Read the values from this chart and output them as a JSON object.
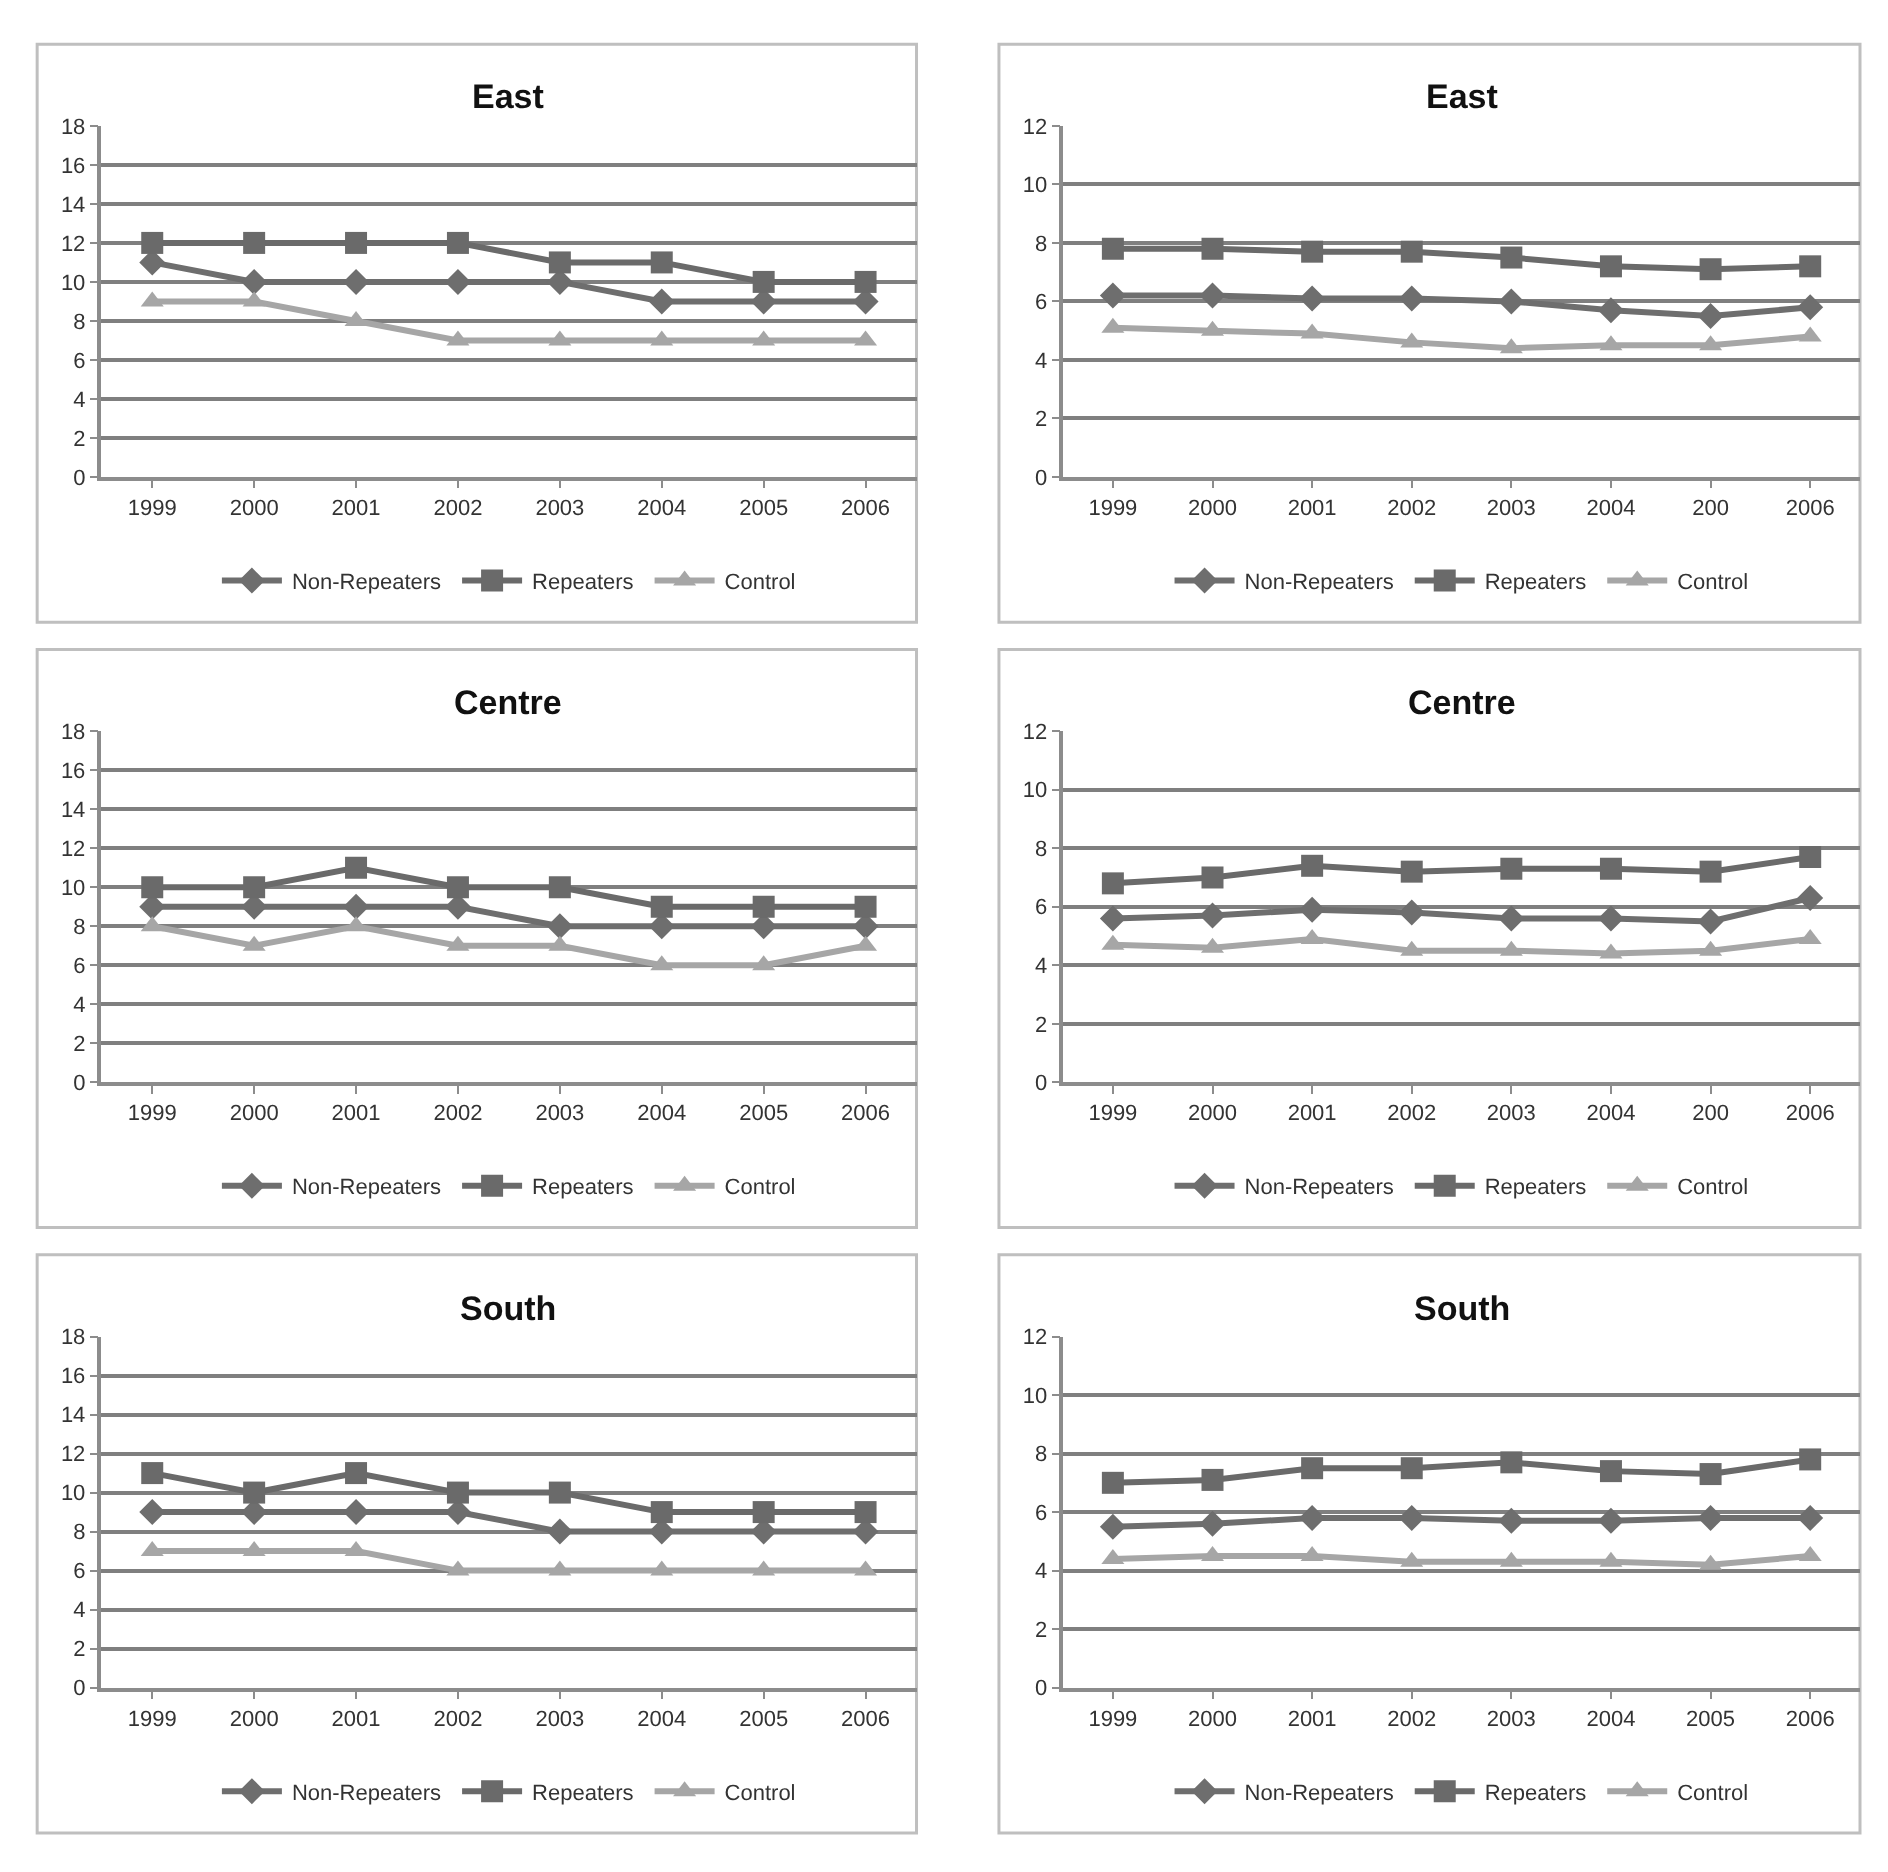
{
  "chart_data": [
    {
      "type": "line",
      "title": "East",
      "categories": [
        "1999",
        "2000",
        "2001",
        "2002",
        "2003",
        "2004",
        "2005",
        "2006"
      ],
      "ylim": [
        0,
        18
      ],
      "yticks": [
        0,
        2,
        4,
        6,
        8,
        10,
        12,
        14,
        16,
        18
      ],
      "grid": "y",
      "legend": "bottom",
      "series": [
        {
          "name": "Non-Repeaters",
          "color": "#6e6e6e",
          "marker": "diamond",
          "values": [
            11,
            10,
            10,
            10,
            10,
            9,
            9,
            9
          ]
        },
        {
          "name": "Repeaters",
          "color": "#6a6a6a",
          "marker": "square",
          "values": [
            12,
            12,
            12,
            12,
            11,
            11,
            10,
            10
          ]
        },
        {
          "name": "Control",
          "color": "#a6a6a6",
          "marker": "triangle",
          "values": [
            9,
            9,
            8,
            7,
            7,
            7,
            7,
            7
          ]
        }
      ]
    },
    {
      "type": "line",
      "title": "East",
      "categories": [
        "1999",
        "2000",
        "2001",
        "2002",
        "2003",
        "2004",
        "200",
        "2006"
      ],
      "ylim": [
        0,
        12
      ],
      "yticks": [
        0,
        2,
        4,
        6,
        8,
        10,
        12
      ],
      "grid": "y",
      "legend": "bottom",
      "series": [
        {
          "name": "Non-Repeaters",
          "color": "#6e6e6e",
          "marker": "diamond",
          "values": [
            6.2,
            6.2,
            6.1,
            6.1,
            6.0,
            5.7,
            5.5,
            5.8
          ]
        },
        {
          "name": "Repeaters",
          "color": "#6a6a6a",
          "marker": "square",
          "values": [
            7.8,
            7.8,
            7.7,
            7.7,
            7.5,
            7.2,
            7.1,
            7.2
          ]
        },
        {
          "name": "Control",
          "color": "#a6a6a6",
          "marker": "triangle",
          "values": [
            5.1,
            5.0,
            4.9,
            4.6,
            4.4,
            4.5,
            4.5,
            4.8
          ]
        }
      ]
    },
    {
      "type": "line",
      "title": "Centre",
      "categories": [
        "1999",
        "2000",
        "2001",
        "2002",
        "2003",
        "2004",
        "2005",
        "2006"
      ],
      "ylim": [
        0,
        18
      ],
      "yticks": [
        0,
        2,
        4,
        6,
        8,
        10,
        12,
        14,
        16,
        18
      ],
      "grid": "y",
      "legend": "bottom",
      "series": [
        {
          "name": "Non-Repeaters",
          "color": "#6e6e6e",
          "marker": "diamond",
          "values": [
            9,
            9,
            9,
            9,
            8,
            8,
            8,
            8
          ]
        },
        {
          "name": "Repeaters",
          "color": "#6a6a6a",
          "marker": "square",
          "values": [
            10,
            10,
            11,
            10,
            10,
            9,
            9,
            9
          ]
        },
        {
          "name": "Control",
          "color": "#a6a6a6",
          "marker": "triangle",
          "values": [
            8,
            7,
            8,
            7,
            7,
            6,
            6,
            7
          ]
        }
      ]
    },
    {
      "type": "line",
      "title": "Centre",
      "categories": [
        "1999",
        "2000",
        "2001",
        "2002",
        "2003",
        "2004",
        "200",
        "2006"
      ],
      "ylim": [
        0,
        12
      ],
      "yticks": [
        0,
        2,
        4,
        6,
        8,
        10,
        12
      ],
      "grid": "y",
      "legend": "bottom",
      "series": [
        {
          "name": "Non-Repeaters",
          "color": "#6e6e6e",
          "marker": "diamond",
          "values": [
            5.6,
            5.7,
            5.9,
            5.8,
            5.6,
            5.6,
            5.5,
            6.3
          ]
        },
        {
          "name": "Repeaters",
          "color": "#6a6a6a",
          "marker": "square",
          "values": [
            6.8,
            7.0,
            7.4,
            7.2,
            7.3,
            7.3,
            7.2,
            7.7
          ]
        },
        {
          "name": "Control",
          "color": "#a6a6a6",
          "marker": "triangle",
          "values": [
            4.7,
            4.6,
            4.9,
            4.5,
            4.5,
            4.4,
            4.5,
            4.9
          ]
        }
      ]
    },
    {
      "type": "line",
      "title": "South",
      "categories": [
        "1999",
        "2000",
        "2001",
        "2002",
        "2003",
        "2004",
        "2005",
        "2006"
      ],
      "ylim": [
        0,
        18
      ],
      "yticks": [
        0,
        2,
        4,
        6,
        8,
        10,
        12,
        14,
        16,
        18
      ],
      "grid": "y",
      "legend": "bottom",
      "series": [
        {
          "name": "Non-Repeaters",
          "color": "#6e6e6e",
          "marker": "diamond",
          "values": [
            9,
            9,
            9,
            9,
            8,
            8,
            8,
            8
          ]
        },
        {
          "name": "Repeaters",
          "color": "#6a6a6a",
          "marker": "square",
          "values": [
            11,
            10,
            11,
            10,
            10,
            9,
            9,
            9
          ]
        },
        {
          "name": "Control",
          "color": "#a6a6a6",
          "marker": "triangle",
          "values": [
            7,
            7,
            7,
            6,
            6,
            6,
            6,
            6
          ]
        }
      ]
    },
    {
      "type": "line",
      "title": "South",
      "categories": [
        "1999",
        "2000",
        "2001",
        "2002",
        "2003",
        "2004",
        "2005",
        "2006"
      ],
      "ylim": [
        0,
        12
      ],
      "yticks": [
        0,
        2,
        4,
        6,
        8,
        10,
        12
      ],
      "grid": "y",
      "legend": "bottom",
      "series": [
        {
          "name": "Non-Repeaters",
          "color": "#6e6e6e",
          "marker": "diamond",
          "values": [
            5.5,
            5.6,
            5.8,
            5.8,
            5.7,
            5.7,
            5.8,
            5.8
          ]
        },
        {
          "name": "Repeaters",
          "color": "#6a6a6a",
          "marker": "square",
          "values": [
            7.0,
            7.1,
            7.5,
            7.5,
            7.7,
            7.4,
            7.3,
            7.8
          ]
        },
        {
          "name": "Control",
          "color": "#a6a6a6",
          "marker": "triangle",
          "values": [
            4.4,
            4.5,
            4.5,
            4.3,
            4.3,
            4.3,
            4.2,
            4.5
          ]
        }
      ]
    }
  ]
}
